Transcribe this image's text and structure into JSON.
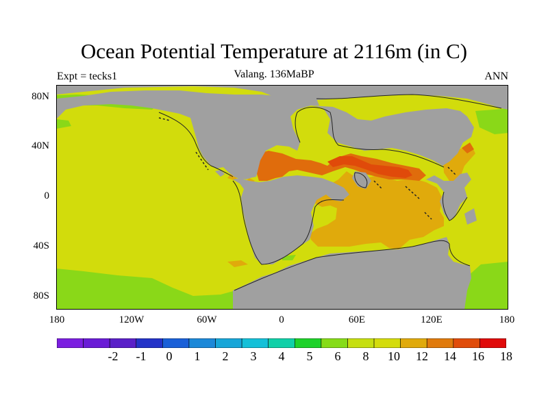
{
  "title": "Ocean Potential Temperature at 2116m (in C)",
  "experiment_label": "Expt = tecks1",
  "subtitle": "Valang. 136MaBP",
  "period_label": "ANN",
  "lat_labels": [
    "80N",
    "40N",
    "0",
    "40S",
    "80S"
  ],
  "lon_labels": [
    "180",
    "120W",
    "60W",
    "0",
    "60E",
    "120E",
    "180"
  ],
  "colorbar": {
    "colors": [
      "#7b1fe0",
      "#6a1cd6",
      "#5a20c8",
      "#2433c8",
      "#1a60d8",
      "#1c88d8",
      "#17a6d8",
      "#14c0d8",
      "#10d0a8",
      "#1ed22a",
      "#86dc18",
      "#c6df10",
      "#d4dc0c",
      "#e0aa0c",
      "#e07a0c",
      "#e04c0a",
      "#e00a0a"
    ],
    "labels": [
      "-2",
      "-1",
      "0",
      "1",
      "2",
      "3",
      "4",
      "5",
      "6",
      "8",
      "10",
      "12",
      "14",
      "16",
      "18"
    ]
  },
  "map_colors": {
    "land": "#a0a0a0",
    "ocean_10_12": "#d2dc0c",
    "ocean_8_10": "#8ad818",
    "ocean_12_14": "#e0aa0c",
    "ocean_14_16": "#e06c0c",
    "ocean_16_18": "#e04a0a",
    "ocean_18_plus": "#e00a0a"
  }
}
